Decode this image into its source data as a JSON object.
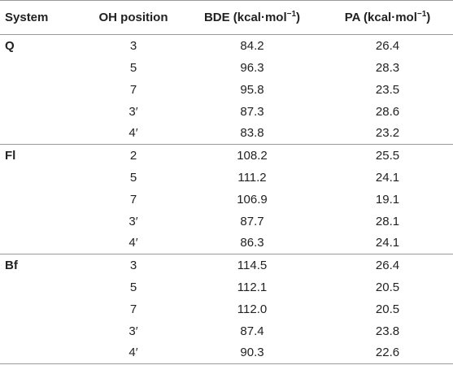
{
  "headers": {
    "system": "System",
    "oh_position": "OH position",
    "bde_prefix": "BDE (kcal·mol",
    "bde_sup": "−1",
    "bde_suffix": ")",
    "pa_prefix": "PA (kcal·mol",
    "pa_sup": "−1",
    "pa_suffix": ")"
  },
  "rows": [
    {
      "system": "Q",
      "oh": "3",
      "bde": "84.2",
      "pa": "26.4"
    },
    {
      "system": "",
      "oh": "5",
      "bde": "96.3",
      "pa": "28.3"
    },
    {
      "system": "",
      "oh": "7",
      "bde": "95.8",
      "pa": "23.5"
    },
    {
      "system": "",
      "oh": "3′",
      "bde": "87.3",
      "pa": "28.6"
    },
    {
      "system": "",
      "oh": "4′",
      "bde": "83.8",
      "pa": "23.2"
    },
    {
      "system": "Fl",
      "oh": "2",
      "bde": "108.2",
      "pa": "25.5"
    },
    {
      "system": "",
      "oh": "5",
      "bde": "111.2",
      "pa": "24.1"
    },
    {
      "system": "",
      "oh": "7",
      "bde": "106.9",
      "pa": "19.1"
    },
    {
      "system": "",
      "oh": "3′",
      "bde": "87.7",
      "pa": "28.1"
    },
    {
      "system": "",
      "oh": "4′",
      "bde": "86.3",
      "pa": "24.1"
    },
    {
      "system": "Bf",
      "oh": "3",
      "bde": "114.5",
      "pa": "26.4"
    },
    {
      "system": "",
      "oh": "5",
      "bde": "112.1",
      "pa": "20.5"
    },
    {
      "system": "",
      "oh": "7",
      "bde": "112.0",
      "pa": "20.5"
    },
    {
      "system": "",
      "oh": "3′",
      "bde": "87.4",
      "pa": "23.8"
    },
    {
      "system": "",
      "oh": "4′",
      "bde": "90.3",
      "pa": "22.6"
    }
  ]
}
